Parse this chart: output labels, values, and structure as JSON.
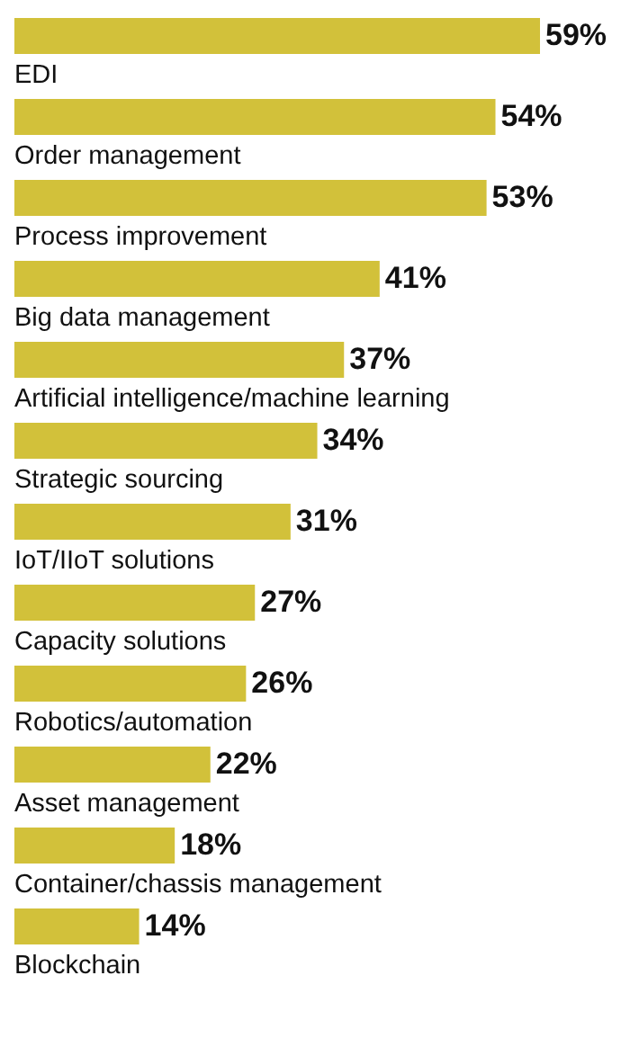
{
  "chart_data": {
    "type": "bar",
    "orientation": "horizontal",
    "categories": [
      "EDI",
      "Order management",
      "Process improvement",
      "Big data management",
      "Artificial intelligence/machine learning",
      "Strategic sourcing",
      "IoT/IIoT solutions",
      "Capacity solutions",
      "Robotics/automation",
      "Asset management",
      "Container/chassis management",
      "Blockchain"
    ],
    "values": [
      59,
      54,
      53,
      41,
      37,
      34,
      31,
      27,
      26,
      22,
      18,
      14
    ],
    "value_labels": [
      "59%",
      "54%",
      "53%",
      "41%",
      "37%",
      "34%",
      "31%",
      "27%",
      "26%",
      "22%",
      "18%",
      "14%"
    ],
    "color": "#d2c13a"
  }
}
